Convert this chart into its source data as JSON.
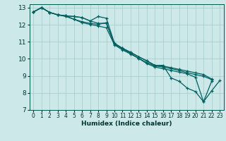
{
  "xlabel": "Humidex (Indice chaleur)",
  "ylabel": "",
  "bg_color": "#cce8e8",
  "grid_color": "#aacece",
  "line_color": "#006060",
  "xlim": [
    -0.5,
    23.5
  ],
  "ylim": [
    7,
    13.2
  ],
  "xticks": [
    0,
    1,
    2,
    3,
    4,
    5,
    6,
    7,
    8,
    9,
    10,
    11,
    12,
    13,
    14,
    15,
    16,
    17,
    18,
    19,
    20,
    21,
    22,
    23
  ],
  "yticks": [
    7,
    8,
    9,
    10,
    11,
    12,
    13
  ],
  "lines": [
    {
      "x": [
        0,
        1,
        2,
        3,
        4,
        5,
        6,
        7,
        8,
        9,
        10,
        11,
        12,
        13,
        14,
        15,
        16,
        17,
        18,
        19,
        20,
        21,
        22
      ],
      "y": [
        12.75,
        13.0,
        12.72,
        12.58,
        12.52,
        12.48,
        12.42,
        12.22,
        12.08,
        12.08,
        10.88,
        10.62,
        10.38,
        10.12,
        9.88,
        9.62,
        9.58,
        9.48,
        9.38,
        9.28,
        9.18,
        9.08,
        8.82
      ]
    },
    {
      "x": [
        0,
        1,
        2,
        3,
        4,
        5,
        6,
        7,
        8,
        9,
        10,
        11,
        12,
        13,
        14,
        15,
        16,
        17,
        18,
        19,
        20,
        21,
        22
      ],
      "y": [
        12.75,
        13.0,
        12.72,
        12.58,
        12.52,
        12.48,
        12.42,
        12.22,
        12.48,
        12.38,
        10.92,
        10.62,
        10.38,
        10.12,
        9.88,
        9.62,
        9.62,
        8.88,
        8.68,
        8.28,
        8.08,
        7.48,
        8.68
      ]
    },
    {
      "x": [
        0,
        1,
        2,
        3,
        4,
        5,
        6,
        7,
        8,
        9,
        10,
        11,
        12,
        13,
        14,
        15,
        16,
        17,
        18,
        19,
        20,
        21,
        22
      ],
      "y": [
        12.75,
        13.0,
        12.72,
        12.58,
        12.48,
        12.32,
        12.18,
        12.08,
        12.02,
        12.12,
        10.88,
        10.58,
        10.32,
        10.02,
        9.78,
        9.58,
        9.52,
        9.42,
        9.32,
        9.18,
        9.08,
        8.98,
        8.78
      ]
    },
    {
      "x": [
        0,
        1,
        2,
        3,
        4,
        5,
        6,
        7,
        8,
        9,
        10,
        11,
        12,
        13,
        14,
        15,
        16,
        17,
        18,
        19,
        20,
        21,
        22,
        23
      ],
      "y": [
        12.75,
        13.0,
        12.72,
        12.58,
        12.52,
        12.32,
        12.12,
        12.02,
        11.92,
        11.82,
        10.82,
        10.52,
        10.28,
        10.02,
        9.72,
        9.52,
        9.42,
        9.32,
        9.22,
        9.12,
        8.92,
        7.48,
        8.12,
        8.72
      ]
    }
  ]
}
